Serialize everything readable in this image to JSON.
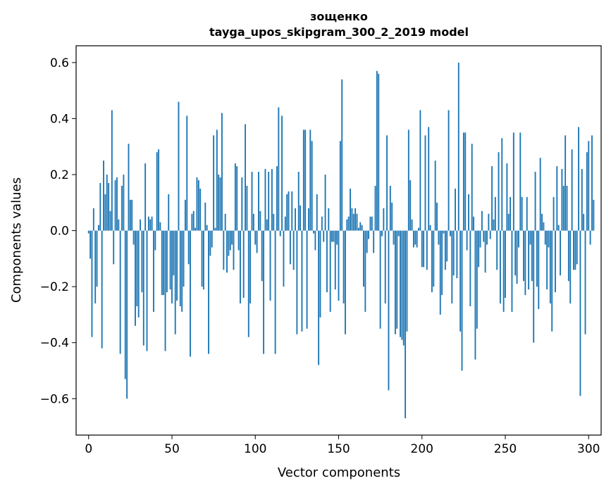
{
  "chart_data": {
    "type": "bar",
    "title": "зощенко",
    "subtitle": "tayga_upos_skipgram_300_2_2019 model",
    "xlabel": "Vector components",
    "ylabel": "Components values",
    "xlim": [
      -7.5,
      307.5
    ],
    "ylim": [
      -0.73,
      0.66
    ],
    "xticks": [
      0,
      50,
      100,
      150,
      200,
      250,
      300
    ],
    "xtick_labels": [
      "0",
      "50",
      "100",
      "150",
      "200",
      "250",
      "300"
    ],
    "yticks": [
      -0.6,
      -0.4,
      -0.2,
      0.0,
      0.2,
      0.4,
      0.6
    ],
    "ytick_labels": [
      "−0.6",
      "−0.4",
      "−0.2",
      "0.0",
      "0.2",
      "0.4",
      "0.6"
    ],
    "grid": false,
    "legend": "none",
    "bar_color": "#1f77b4",
    "values": [
      -0.01,
      -0.1,
      -0.38,
      0.08,
      -0.26,
      -0.2,
      0.02,
      0.17,
      -0.42,
      0.25,
      0.13,
      0.2,
      0.17,
      0.07,
      0.43,
      -0.12,
      0.18,
      0.19,
      0.04,
      -0.44,
      0.16,
      0.2,
      -0.53,
      -0.6,
      0.31,
      0.11,
      0.11,
      -0.05,
      -0.34,
      -0.27,
      -0.31,
      0.04,
      -0.22,
      -0.41,
      0.24,
      -0.43,
      0.05,
      0.04,
      0.05,
      -0.29,
      -0.07,
      0.28,
      0.29,
      0.03,
      -0.23,
      -0.23,
      -0.43,
      -0.22,
      0.13,
      -0.21,
      -0.26,
      -0.16,
      -0.37,
      -0.25,
      0.46,
      -0.27,
      -0.29,
      -0.2,
      0.11,
      0.41,
      -0.12,
      -0.45,
      0.06,
      0.07,
      0.01,
      0.19,
      0.18,
      0.15,
      -0.2,
      -0.21,
      0.1,
      0.02,
      -0.44,
      -0.09,
      -0.06,
      0.34,
      0.01,
      0.36,
      0.2,
      0.19,
      0.42,
      -0.14,
      0.06,
      -0.15,
      -0.09,
      -0.07,
      -0.05,
      -0.14,
      0.24,
      0.23,
      -0.07,
      -0.26,
      0.19,
      -0.24,
      0.38,
      0.16,
      -0.38,
      -0.26,
      0.21,
      0.06,
      -0.05,
      -0.08,
      0.21,
      0.07,
      -0.18,
      -0.44,
      0.22,
      0.04,
      0.21,
      -0.25,
      0.22,
      0.06,
      -0.44,
      0.23,
      0.44,
      -0.02,
      0.41,
      -0.2,
      0.05,
      0.13,
      0.14,
      -0.12,
      0.14,
      -0.14,
      0.08,
      -0.37,
      0.21,
      0.09,
      -0.36,
      0.36,
      0.36,
      -0.35,
      0.08,
      0.36,
      0.32,
      -0.01,
      -0.07,
      0.13,
      -0.48,
      -0.31,
      0.05,
      -0.04,
      0.2,
      -0.22,
      0.08,
      -0.29,
      -0.04,
      -0.04,
      -0.21,
      -0.05,
      -0.25,
      0.32,
      0.54,
      -0.26,
      -0.37,
      0.04,
      0.05,
      0.15,
      0.08,
      0.06,
      0.08,
      0.06,
      0.01,
      0.03,
      0.02,
      -0.2,
      -0.29,
      -0.08,
      -0.03,
      0.05,
      0.05,
      -0.08,
      0.16,
      0.57,
      0.56,
      -0.35,
      -0.02,
      0.08,
      -0.26,
      0.34,
      -0.57,
      0.16,
      0.1,
      -0.05,
      -0.37,
      -0.35,
      -0.02,
      -0.38,
      -0.39,
      -0.41,
      -0.67,
      -0.36,
      0.36,
      0.18,
      0.04,
      -0.06,
      -0.05,
      -0.06,
      0.01,
      0.43,
      -0.13,
      -0.13,
      0.34,
      -0.14,
      0.37,
      0.02,
      -0.22,
      -0.2,
      0.25,
      0.1,
      -0.05,
      -0.3,
      -0.23,
      -0.01,
      -0.14,
      -0.11,
      0.43,
      -0.02,
      -0.26,
      -0.16,
      0.15,
      -0.17,
      0.6,
      -0.36,
      -0.5,
      0.35,
      0.35,
      -0.07,
      0.13,
      -0.27,
      0.31,
      0.05,
      -0.46,
      -0.35,
      -0.13,
      -0.06,
      0.07,
      -0.04,
      -0.15,
      -0.05,
      0.06,
      -0.03,
      0.23,
      0.04,
      0.12,
      -0.14,
      0.28,
      -0.26,
      0.33,
      -0.29,
      -0.24,
      0.24,
      0.06,
      0.12,
      -0.29,
      0.35,
      -0.16,
      -0.19,
      -0.06,
      0.35,
      0.12,
      -0.18,
      -0.23,
      0.12,
      -0.21,
      -0.05,
      -0.18,
      -0.4,
      0.21,
      -0.2,
      -0.28,
      0.26,
      0.06,
      0.03,
      -0.05,
      -0.21,
      -0.06,
      -0.26,
      -0.36,
      0.12,
      -0.22,
      0.23,
      0.02,
      -0.16,
      0.22,
      0.16,
      0.34,
      0.16,
      -0.18,
      -0.26,
      0.29,
      -0.14,
      -0.14,
      -0.12,
      0.37,
      -0.59,
      0.22,
      0.06,
      -0.37,
      0.28,
      0.32,
      -0.05,
      0.34,
      0.11
    ]
  }
}
